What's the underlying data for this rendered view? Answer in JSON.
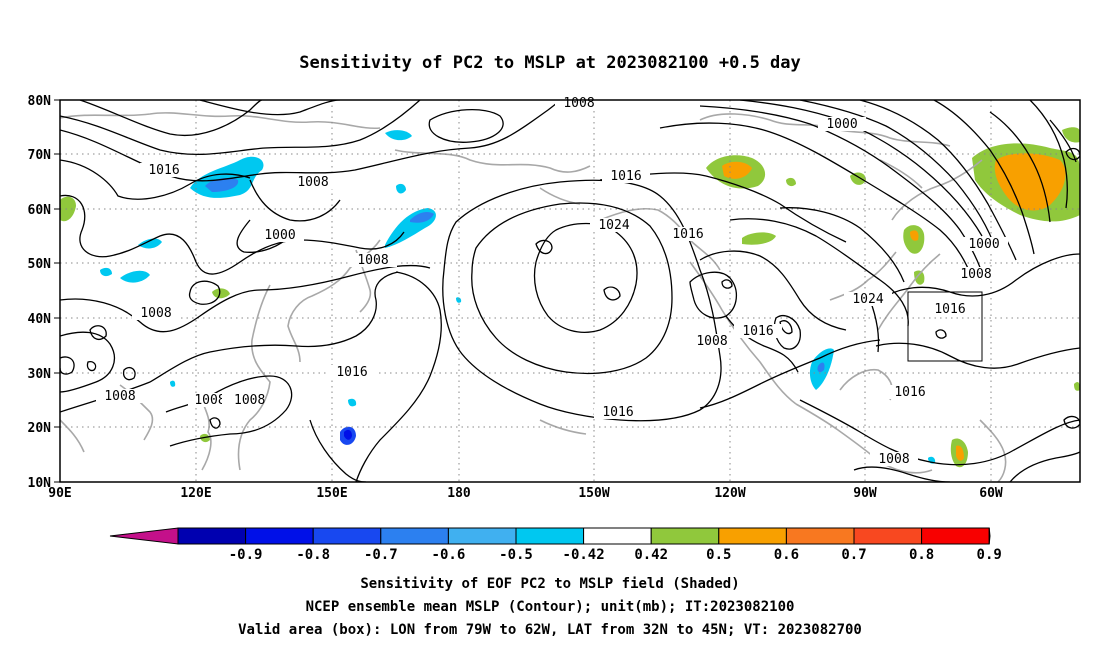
{
  "title": "Sensitivity of PC2 to MSLP at 2023082100 +0.5 day",
  "lat_labels": [
    "80N",
    "70N",
    "60N",
    "50N",
    "40N",
    "30N",
    "20N",
    "10N"
  ],
  "lon_labels": [
    "90E",
    "120E",
    "150E",
    "180",
    "150W",
    "120W",
    "90W",
    "60W"
  ],
  "colorbar": {
    "labels": [
      "-0.9",
      "-0.8",
      "-0.7",
      "-0.6",
      "-0.5",
      "-0.42",
      "0.42",
      "0.5",
      "0.6",
      "0.7",
      "0.8",
      "0.9"
    ],
    "colors": {
      "under": "#c4108a",
      "bins": [
        "#0000b0",
        "#0010e8",
        "#1848f0",
        "#2c80f0",
        "#40b0f0",
        "#00c8f0",
        "#ffffff",
        "#90c83c",
        "#f8a000",
        "#f87820",
        "#f84820",
        "#f80000"
      ],
      "over": "#f4a0c8"
    }
  },
  "contour_labels": {
    "c1008_top": "1008",
    "c1000_ne": "1000",
    "c1016_w": "1016",
    "c1008_a": "1008",
    "c1000_w": "1000",
    "c1008_b": "1008",
    "c1016_c": "1016",
    "c1024": "1024",
    "c1016_d": "1016",
    "c1008_e": "1008",
    "c1016_f": "1016",
    "c1008_g": "1008",
    "c1016_h": "1016",
    "c1008_i": "1008",
    "c1008_j": "1008",
    "c1008_k": "1008",
    "c1016_l": "1016",
    "c1024_b": "1024",
    "c1016_box": "1016",
    "c1000_e": "1000",
    "c1008_m": "1008",
    "c1016_n": "1016",
    "c1008_n": "1008"
  },
  "captions": {
    "line1": "Sensitivity of EOF PC2 to MSLP field (Shaded)",
    "line2": "NCEP ensemble mean MSLP (Contour); unit(mb); IT:2023082100",
    "line3": "Valid area (box): LON from 79W to 62W, LAT from 32N to 45N; VT: 2023082700"
  },
  "colors": {
    "contour": "#000000",
    "coastline": "#a8a8a8",
    "positive_green": "#90c83c",
    "positive_orange": "#f8a000",
    "negative_cyan": "#00c8f0",
    "negative_blue": "#1848f0"
  }
}
